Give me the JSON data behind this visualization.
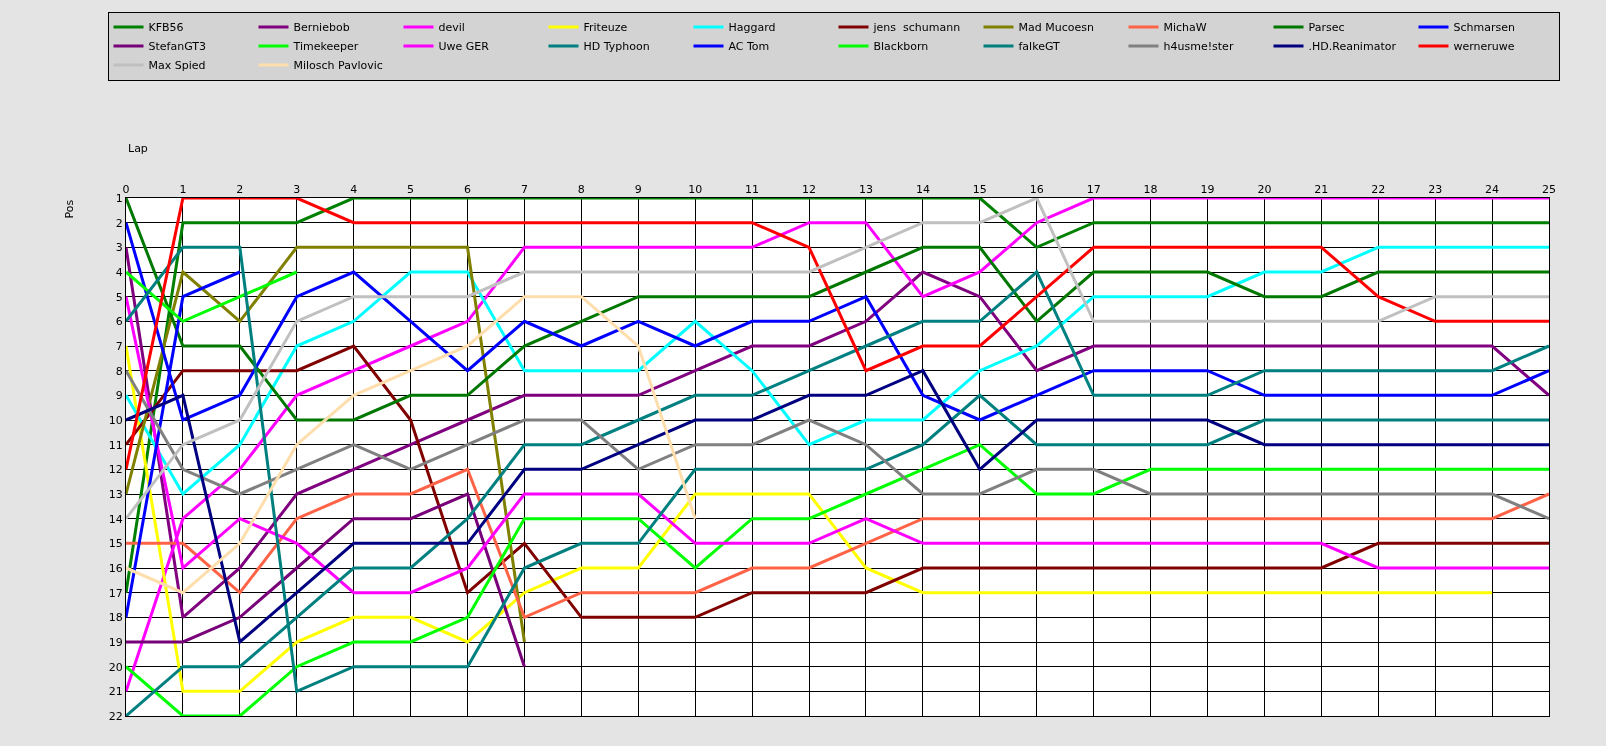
{
  "chart_data": {
    "type": "line",
    "xlabel": "Lap",
    "ylabel": "Pos",
    "x": [
      0,
      1,
      2,
      3,
      4,
      5,
      6,
      7,
      8,
      9,
      10,
      11,
      12,
      13,
      14,
      15,
      16,
      17,
      18,
      19,
      20,
      21,
      22,
      23,
      24,
      25
    ],
    "xlim": [
      0,
      25
    ],
    "xticks": [
      0,
      1,
      2,
      3,
      4,
      5,
      6,
      7,
      8,
      9,
      10,
      11,
      12,
      13,
      14,
      15,
      16,
      17,
      18,
      19,
      20,
      21,
      22,
      23,
      24,
      25
    ],
    "ylim": [
      22,
      1
    ],
    "yticks": [
      1,
      2,
      3,
      4,
      5,
      6,
      7,
      8,
      9,
      10,
      11,
      12,
      13,
      14,
      15,
      16,
      17,
      18,
      19,
      20,
      21,
      22
    ],
    "grid": true,
    "legend": "top",
    "marker": "none",
    "line_style": "solid",
    "series": [
      {
        "name": "KFB56",
        "color": "#008000",
        "values": [
          17,
          2,
          2,
          2,
          1,
          1,
          1,
          1,
          1,
          1,
          1,
          1,
          1,
          1,
          1,
          1,
          3,
          2,
          2,
          2,
          2,
          2,
          2,
          2,
          2,
          2
        ]
      },
      {
        "name": "Berniebob",
        "color": "#800080",
        "values": [
          3,
          18,
          16,
          13,
          12,
          11,
          10,
          9,
          9,
          9,
          8,
          7,
          7,
          6,
          4,
          5,
          8,
          7,
          7,
          7,
          7,
          7,
          7,
          7,
          7,
          9
        ]
      },
      {
        "name": "devil",
        "color": "#ff00ff",
        "values": [
          21,
          14,
          12,
          9,
          8,
          7,
          6,
          3,
          3,
          3,
          3,
          3,
          2,
          2,
          5,
          4,
          2,
          1,
          1,
          1,
          1,
          1,
          1,
          1,
          1,
          1
        ]
      },
      {
        "name": "Friteuze",
        "color": "#ffff00",
        "values": [
          7,
          21,
          21,
          19,
          18,
          18,
          19,
          17,
          16,
          16,
          13,
          13,
          13,
          16,
          17,
          17,
          17,
          17,
          17,
          17,
          17,
          17,
          17,
          17,
          17,
          null
        ]
      },
      {
        "name": "Haggard",
        "color": "#00ffff",
        "values": [
          9,
          13,
          11,
          7,
          6,
          4,
          4,
          8,
          8,
          8,
          6,
          8,
          11,
          10,
          10,
          8,
          7,
          5,
          5,
          5,
          4,
          4,
          3,
          3,
          3,
          3
        ]
      },
      {
        "name": "jens  schumann",
        "color": "#800000",
        "values": [
          11,
          8,
          8,
          8,
          7,
          10,
          17,
          15,
          18,
          18,
          18,
          17,
          17,
          17,
          16,
          16,
          16,
          16,
          16,
          16,
          16,
          16,
          15,
          15,
          15,
          15
        ]
      },
      {
        "name": "Mad Mucoesn",
        "color": "#808000",
        "values": [
          13,
          4,
          6,
          3,
          3,
          3,
          3,
          19,
          null,
          null,
          null,
          null,
          null,
          null,
          null,
          null,
          null,
          null,
          null,
          null,
          null,
          null,
          null,
          null,
          null,
          null
        ]
      },
      {
        "name": "MichaW",
        "color": "#ff6347",
        "values": [
          15,
          15,
          17,
          14,
          13,
          13,
          12,
          18,
          17,
          17,
          17,
          16,
          16,
          15,
          14,
          14,
          14,
          14,
          14,
          14,
          14,
          14,
          14,
          14,
          14,
          13
        ]
      },
      {
        "name": "Parsec",
        "color": "#007800",
        "values": [
          1,
          7,
          7,
          10,
          10,
          9,
          9,
          7,
          6,
          5,
          5,
          5,
          5,
          4,
          3,
          3,
          6,
          4,
          4,
          4,
          5,
          5,
          4,
          4,
          4,
          4
        ]
      },
      {
        "name": "Schmarsen",
        "color": "#0000ff",
        "values": [
          2,
          10,
          9,
          5,
          4,
          6,
          8,
          6,
          7,
          6,
          7,
          6,
          6,
          5,
          9,
          10,
          9,
          8,
          8,
          8,
          9,
          9,
          9,
          9,
          9,
          8
        ]
      },
      {
        "name": "StefanGT3",
        "color": "#780078",
        "values": [
          19,
          19,
          18,
          16,
          14,
          14,
          13,
          20,
          null,
          null,
          null,
          null,
          null,
          null,
          null,
          null,
          null,
          null,
          null,
          null,
          null,
          null,
          null,
          null,
          null,
          null
        ]
      },
      {
        "name": "Timekeeper",
        "color": "#00ff00",
        "values": [
          20,
          22,
          22,
          20,
          19,
          19,
          18,
          14,
          14,
          14,
          16,
          14,
          14,
          13,
          12,
          11,
          13,
          13,
          12,
          12,
          12,
          12,
          12,
          12,
          12,
          12
        ]
      },
      {
        "name": "Uwe GER",
        "color": "#fe00fe",
        "values": [
          5,
          16,
          14,
          15,
          17,
          17,
          16,
          13,
          13,
          13,
          15,
          15,
          15,
          14,
          15,
          15,
          15,
          15,
          15,
          15,
          15,
          15,
          16,
          16,
          16,
          16
        ]
      },
      {
        "name": "HD Typhoon",
        "color": "#008080",
        "values": [
          22,
          20,
          20,
          18,
          16,
          16,
          14,
          11,
          11,
          10,
          9,
          9,
          8,
          7,
          6,
          6,
          4,
          9,
          9,
          9,
          8,
          8,
          8,
          8,
          8,
          7
        ]
      },
      {
        "name": "AC Tom",
        "color": "#0000fe",
        "values": [
          18,
          5,
          4,
          null,
          null,
          null,
          null,
          null,
          null,
          null,
          null,
          null,
          null,
          null,
          null,
          null,
          null,
          null,
          null,
          null,
          null,
          null,
          null,
          null,
          null,
          null
        ]
      },
      {
        "name": "Blackborn",
        "color": "#00fe00",
        "values": [
          4,
          6,
          5,
          4,
          null,
          null,
          null,
          null,
          null,
          null,
          null,
          null,
          null,
          null,
          null,
          null,
          null,
          null,
          null,
          null,
          null,
          null,
          null,
          null,
          null,
          null
        ]
      },
      {
        "name": "falkeGT",
        "color": "#007f7f",
        "values": [
          6,
          3,
          3,
          21,
          20,
          20,
          20,
          16,
          15,
          15,
          12,
          12,
          12,
          12,
          11,
          9,
          11,
          11,
          11,
          11,
          10,
          10,
          10,
          10,
          10,
          10
        ]
      },
      {
        "name": "h4usme!ster",
        "color": "#808080",
        "values": [
          8,
          12,
          13,
          12,
          11,
          12,
          11,
          10,
          10,
          12,
          11,
          11,
          10,
          11,
          13,
          13,
          12,
          12,
          13,
          13,
          13,
          13,
          13,
          13,
          13,
          14
        ]
      },
      {
        "name": ".HD.Reanimator",
        "color": "#000080",
        "values": [
          10,
          9,
          19,
          17,
          15,
          15,
          15,
          12,
          12,
          11,
          10,
          10,
          9,
          9,
          8,
          12,
          10,
          10,
          10,
          10,
          11,
          11,
          11,
          11,
          11,
          11
        ]
      },
      {
        "name": "werneruwe",
        "color": "#ff0000",
        "values": [
          12,
          1,
          1,
          1,
          2,
          2,
          2,
          2,
          2,
          2,
          2,
          2,
          3,
          8,
          7,
          7,
          5,
          3,
          3,
          3,
          3,
          3,
          5,
          6,
          6,
          6
        ]
      },
      {
        "name": "Max Spied",
        "color": "#c0c0c0",
        "values": [
          14,
          11,
          10,
          6,
          5,
          5,
          5,
          4,
          4,
          4,
          4,
          4,
          4,
          3,
          2,
          2,
          1,
          6,
          6,
          6,
          6,
          6,
          6,
          5,
          5,
          5
        ]
      },
      {
        "name": "Milosch Pavlovic",
        "color": "#ffdead",
        "values": [
          16,
          17,
          15,
          11,
          9,
          8,
          7,
          5,
          5,
          7,
          14,
          null,
          null,
          null,
          null,
          null,
          null,
          null,
          null,
          null,
          null,
          null,
          null,
          null,
          null,
          null
        ]
      }
    ]
  }
}
